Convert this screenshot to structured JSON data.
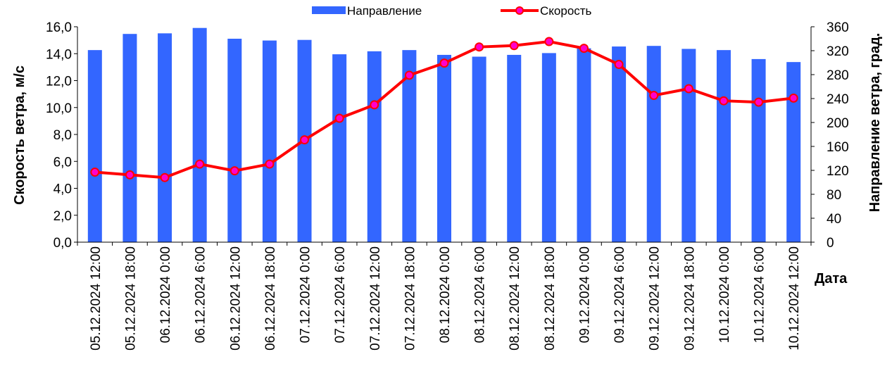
{
  "chart_data": {
    "type": "bar+line",
    "title": "",
    "xlabel": "Дата",
    "ylabel_left": "Скорость ветра, м/с",
    "ylabel_right": "Направление ветра, град.",
    "ylim_left": [
      0,
      16
    ],
    "yticks_left": [
      "0,0",
      "2,0",
      "4,0",
      "6,0",
      "8,0",
      "10,0",
      "12,0",
      "14,0",
      "16,0"
    ],
    "ylim_right": [
      0,
      360
    ],
    "yticks_right": [
      "0",
      "40",
      "80",
      "120",
      "160",
      "200",
      "240",
      "280",
      "320",
      "360"
    ],
    "grid": false,
    "legend_position": "top-center",
    "categories": [
      "05.12.2024 12:00",
      "05.12.2024 18:00",
      "06.12.2024 0:00",
      "06.12.2024 6:00",
      "06.12.2024 12:00",
      "06.12.2024 18:00",
      "07.12.2024 0:00",
      "07.12.2024 6:00",
      "07.12.2024 12:00",
      "07.12.2024 18:00",
      "08.12.2024 0:00",
      "08.12.2024 6:00",
      "08.12.2024 12:00",
      "08.12.2024 18:00",
      "09.12.2024 0:00",
      "09.12.2024 6:00",
      "09.12.2024 12:00",
      "09.12.2024 18:00",
      "10.12.2024 0:00",
      "10.12.2024 6:00",
      "10.12.2024 12:00"
    ],
    "series": [
      {
        "name": "Направление",
        "kind": "bar",
        "axis": "right",
        "color": "#3366ff",
        "values": [
          321,
          348,
          349,
          358,
          340,
          337,
          338,
          314,
          319,
          321,
          313,
          310,
          313,
          316,
          324,
          327,
          328,
          323,
          321,
          306,
          301
        ]
      },
      {
        "name": "Скорость",
        "kind": "line",
        "axis": "left",
        "color": "#ff0000",
        "marker_color": "#ff00cc",
        "values": [
          5.2,
          5.0,
          4.8,
          5.8,
          5.3,
          5.8,
          7.6,
          9.2,
          10.2,
          12.4,
          13.3,
          14.5,
          14.6,
          14.9,
          14.4,
          13.2,
          10.9,
          11.4,
          10.5,
          10.4,
          10.7
        ]
      }
    ]
  }
}
